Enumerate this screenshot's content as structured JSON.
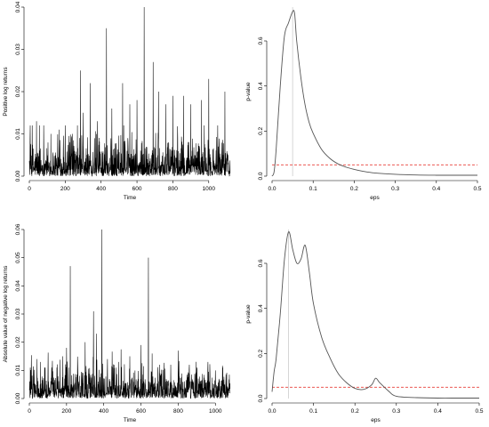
{
  "chart_data": [
    {
      "type": "line",
      "panel": "top-left",
      "xlabel": "Time",
      "ylabel": "Positive log returns",
      "xlim": [
        0,
        1120
      ],
      "ylim": [
        0,
        0.04
      ],
      "xticks": [
        0,
        200,
        400,
        600,
        800,
        1000
      ],
      "yticks": [
        0.0,
        0.01,
        0.02,
        0.03,
        0.04
      ],
      "ytick_labels": [
        "0.00",
        "0.01",
        "0.02",
        "0.03",
        "0.04"
      ],
      "n_points": 1120,
      "baseline": 0.003,
      "spikes": [
        [
          40,
          0.013
        ],
        [
          80,
          0.012
        ],
        [
          120,
          0.01
        ],
        [
          165,
          0.011
        ],
        [
          200,
          0.012
        ],
        [
          240,
          0.01
        ],
        [
          285,
          0.025
        ],
        [
          300,
          0.015
        ],
        [
          340,
          0.022
        ],
        [
          380,
          0.013
        ],
        [
          430,
          0.035
        ],
        [
          460,
          0.016
        ],
        [
          520,
          0.022
        ],
        [
          560,
          0.017
        ],
        [
          600,
          0.018
        ],
        [
          640,
          0.04
        ],
        [
          690,
          0.027
        ],
        [
          720,
          0.02
        ],
        [
          760,
          0.017
        ],
        [
          800,
          0.019
        ],
        [
          860,
          0.019
        ],
        [
          900,
          0.017
        ],
        [
          960,
          0.018
        ],
        [
          1000,
          0.023
        ],
        [
          1050,
          0.012
        ],
        [
          1090,
          0.02
        ]
      ],
      "series": [
        {
          "values_note": ""
        }
      ]
    },
    {
      "type": "line",
      "panel": "top-right",
      "xlabel": "eps",
      "ylabel": "p-value",
      "xlim": [
        0,
        0.5
      ],
      "ylim": [
        0,
        0.75
      ],
      "xticks": [
        0.0,
        0.1,
        0.2,
        0.3,
        0.4,
        0.5
      ],
      "xtick_labels": [
        "0.0",
        "0.1",
        "0.2",
        "0.3",
        "0.4",
        "0.5"
      ],
      "yticks": [
        0.0,
        0.2,
        0.4,
        0.6
      ],
      "ytick_labels": [
        "0.0",
        "0.2",
        "0.4",
        "0.6"
      ],
      "vline": 0.05,
      "hline": 0.05,
      "line_color": "#555555",
      "hline_color": "#e8413a",
      "vline_color": "#bbbbbb",
      "x": [
        0.0,
        0.005,
        0.01,
        0.02,
        0.03,
        0.04,
        0.05,
        0.055,
        0.06,
        0.07,
        0.08,
        0.09,
        0.1,
        0.12,
        0.14,
        0.16,
        0.18,
        0.2,
        0.22,
        0.25,
        0.3,
        0.35,
        0.4,
        0.45,
        0.5
      ],
      "y": [
        0.0,
        0.02,
        0.12,
        0.4,
        0.62,
        0.68,
        0.73,
        0.72,
        0.6,
        0.44,
        0.32,
        0.24,
        0.19,
        0.12,
        0.08,
        0.055,
        0.04,
        0.03,
        0.022,
        0.014,
        0.008,
        0.005,
        0.004,
        0.004,
        0.004
      ]
    },
    {
      "type": "line",
      "panel": "bottom-left",
      "xlabel": "Time",
      "ylabel": "Absolute value of negative log returns",
      "xlim": [
        0,
        1080
      ],
      "ylim": [
        0,
        0.06
      ],
      "xticks": [
        0,
        200,
        400,
        600,
        800,
        1000
      ],
      "yticks": [
        0.0,
        0.01,
        0.02,
        0.03,
        0.04,
        0.05,
        0.06
      ],
      "ytick_labels": [
        "0.00",
        "0.01",
        "0.02",
        "0.03",
        "0.04",
        "0.05",
        "0.06"
      ],
      "n_points": 1080,
      "baseline": 0.004,
      "spikes": [
        [
          60,
          0.013
        ],
        [
          120,
          0.011
        ],
        [
          180,
          0.015
        ],
        [
          200,
          0.018
        ],
        [
          220,
          0.047
        ],
        [
          260,
          0.012
        ],
        [
          300,
          0.02
        ],
        [
          345,
          0.031
        ],
        [
          360,
          0.023
        ],
        [
          390,
          0.06
        ],
        [
          420,
          0.014
        ],
        [
          480,
          0.013
        ],
        [
          540,
          0.015
        ],
        [
          600,
          0.019
        ],
        [
          640,
          0.05
        ],
        [
          660,
          0.016
        ],
        [
          700,
          0.012
        ],
        [
          760,
          0.012
        ],
        [
          800,
          0.017
        ],
        [
          860,
          0.012
        ],
        [
          900,
          0.011
        ],
        [
          960,
          0.013
        ],
        [
          1000,
          0.01
        ],
        [
          1040,
          0.011
        ]
      ],
      "series": [
        {
          "values_note": ""
        }
      ]
    },
    {
      "type": "line",
      "panel": "bottom-right",
      "xlabel": "eps",
      "ylabel": "p-value",
      "xlim": [
        0,
        0.5
      ],
      "ylim": [
        0,
        0.75
      ],
      "xticks": [
        0.0,
        0.1,
        0.2,
        0.3,
        0.4,
        0.5
      ],
      "xtick_labels": [
        "0.0",
        "0.1",
        "0.2",
        "0.3",
        "0.4",
        "0.5"
      ],
      "yticks": [
        0.0,
        0.2,
        0.4,
        0.6
      ],
      "ytick_labels": [
        "0.0",
        "0.2",
        "0.4",
        "0.6"
      ],
      "vline": 0.04,
      "hline": 0.05,
      "line_color": "#555555",
      "hline_color": "#e8413a",
      "vline_color": "#bbbbbb",
      "x": [
        0.0,
        0.005,
        0.01,
        0.02,
        0.03,
        0.04,
        0.05,
        0.06,
        0.07,
        0.08,
        0.09,
        0.1,
        0.12,
        0.14,
        0.16,
        0.18,
        0.2,
        0.22,
        0.24,
        0.25,
        0.26,
        0.28,
        0.3,
        0.35,
        0.4,
        0.45,
        0.5
      ],
      "y": [
        0.03,
        0.12,
        0.18,
        0.38,
        0.62,
        0.74,
        0.66,
        0.6,
        0.62,
        0.68,
        0.56,
        0.42,
        0.27,
        0.18,
        0.11,
        0.07,
        0.045,
        0.04,
        0.06,
        0.09,
        0.07,
        0.035,
        0.01,
        0.004,
        0.002,
        0.002,
        0.002
      ]
    }
  ]
}
